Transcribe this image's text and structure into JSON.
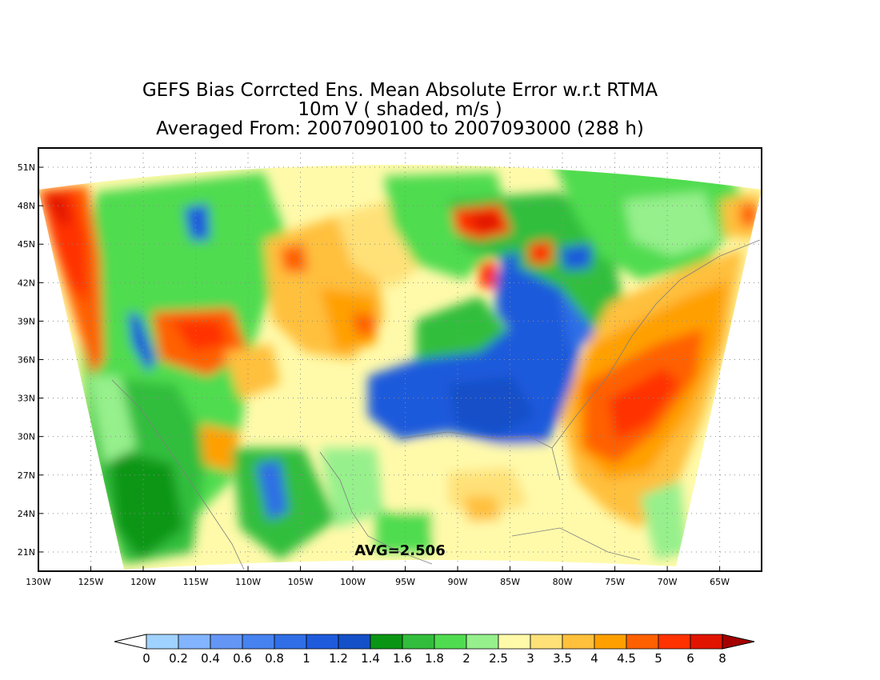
{
  "title": {
    "line1": "GEFS Bias Corrcted Ens. Mean Absolute Error w.r.t RTMA",
    "line2": "10m V ( shaded, m/s )",
    "line3": "Averaged From: 2007090100 to 2007093000 (288 h)"
  },
  "map": {
    "lon_range": [
      -130,
      -61
    ],
    "lat_range": [
      19.5,
      52.5
    ],
    "lat_ticks": [
      {
        "value": 51,
        "label": "51N"
      },
      {
        "value": 48,
        "label": "48N"
      },
      {
        "value": 45,
        "label": "45N"
      },
      {
        "value": 42,
        "label": "42N"
      },
      {
        "value": 39,
        "label": "39N"
      },
      {
        "value": 36,
        "label": "36N"
      },
      {
        "value": 33,
        "label": "33N"
      },
      {
        "value": 30,
        "label": "30N"
      },
      {
        "value": 27,
        "label": "27N"
      },
      {
        "value": 24,
        "label": "24N"
      },
      {
        "value": 21,
        "label": "21N"
      }
    ],
    "lon_ticks": [
      {
        "value": -130,
        "label": "130W"
      },
      {
        "value": -125,
        "label": "125W"
      },
      {
        "value": -120,
        "label": "120W"
      },
      {
        "value": -115,
        "label": "115W"
      },
      {
        "value": -110,
        "label": "110W"
      },
      {
        "value": -105,
        "label": "105W"
      },
      {
        "value": -100,
        "label": "100W"
      },
      {
        "value": -95,
        "label": "95W"
      },
      {
        "value": -90,
        "label": "90W"
      },
      {
        "value": -85,
        "label": "85W"
      },
      {
        "value": -80,
        "label": "80W"
      },
      {
        "value": -75,
        "label": "75W"
      },
      {
        "value": -70,
        "label": "70W"
      },
      {
        "value": -65,
        "label": "65W"
      }
    ],
    "avg_text": "AVG=2.506",
    "colors": {
      "coast": "#7f7f7f",
      "grid": "#8c8c8c",
      "frame": "#000000"
    }
  },
  "colorbar": {
    "levels": [
      "0",
      "0.2",
      "0.4",
      "0.6",
      "0.8",
      "1",
      "1.2",
      "1.4",
      "1.6",
      "1.8",
      "2",
      "2.5",
      "3",
      "3.5",
      "4",
      "4.5",
      "5",
      "6",
      "8"
    ],
    "under_color": "#ffffff",
    "over_color": "#a50000",
    "colors": [
      "#a0d2ff",
      "#82b4ff",
      "#6496f5",
      "#4682f0",
      "#2f6ee6",
      "#1e5adc",
      "#1450c8",
      "#0a9614",
      "#32be3c",
      "#50dc50",
      "#96f08c",
      "#fffaaa",
      "#ffe178",
      "#ffc03c",
      "#ffa000",
      "#ff6000",
      "#ff3200",
      "#e11400",
      "#a50000"
    ]
  }
}
